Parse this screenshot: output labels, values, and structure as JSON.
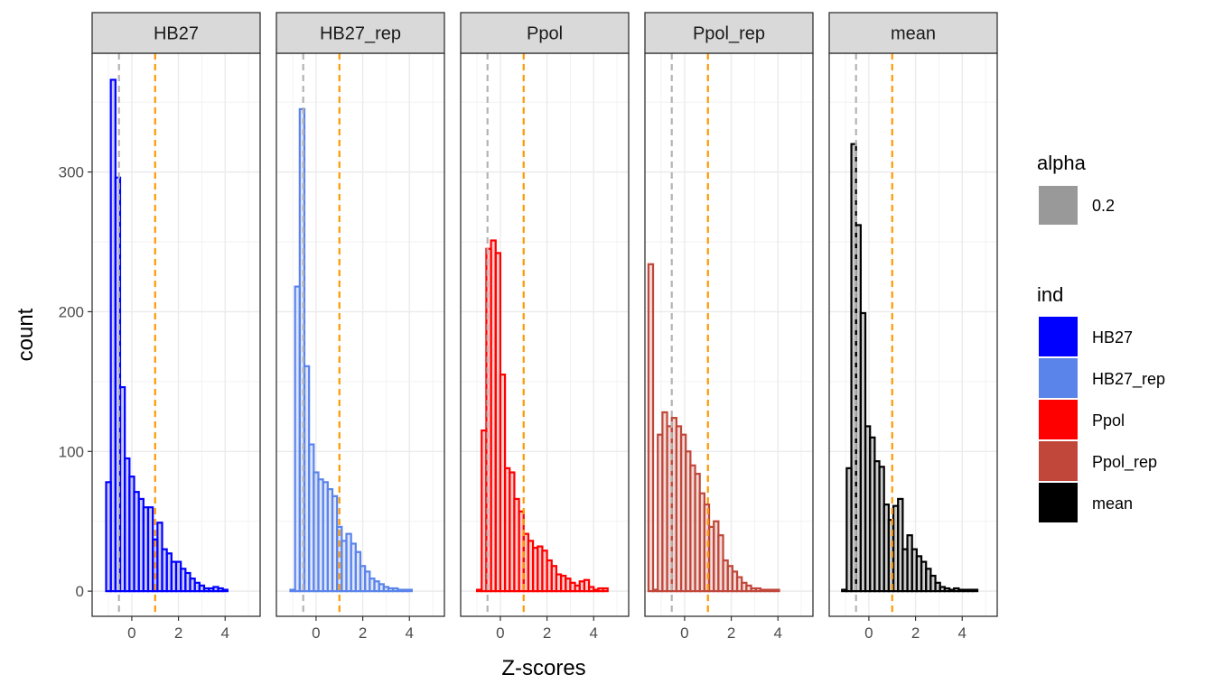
{
  "chart_data": {
    "type": "bar",
    "subtype": "faceted histogram",
    "xlabel": "Z-scores",
    "ylabel": "count",
    "xlim": [
      -1.7,
      5.5
    ],
    "ylim": [
      -18,
      385
    ],
    "x_ticks": [
      0,
      2,
      4
    ],
    "x_tick_labels": [
      "0",
      "2",
      "4"
    ],
    "y_ticks": [
      0,
      100,
      200,
      300
    ],
    "y_tick_labels": [
      "0",
      "100",
      "200",
      "300"
    ],
    "bin_width": 0.2,
    "grid": true,
    "vlines": [
      {
        "x": -0.55,
        "color": "#b3b3b3",
        "style": "dashed"
      },
      {
        "x": 1.0,
        "color": "#ff9900",
        "style": "dashed"
      }
    ],
    "legend_position": "right",
    "legends": [
      {
        "title": "alpha",
        "items": [
          {
            "label": "0.2",
            "color": "#999999"
          }
        ]
      },
      {
        "title": "ind",
        "items": [
          {
            "label": "HB27",
            "color": "#0000ff"
          },
          {
            "label": "HB27_rep",
            "color": "#5b84ea"
          },
          {
            "label": "Ppol",
            "color": "#ff0000"
          },
          {
            "label": "Ppol_rep",
            "color": "#c0473a"
          },
          {
            "label": "mean",
            "color": "#000000"
          }
        ]
      }
    ],
    "panels": [
      {
        "name": "HB27",
        "color": "#0000ff",
        "x_start": -1.1,
        "counts": [
          78,
          366,
          296,
          146,
          95,
          82,
          71,
          66,
          60,
          60,
          37,
          49,
          30,
          27,
          21,
          21,
          16,
          13,
          9,
          6,
          4,
          2,
          2,
          3,
          2,
          1
        ]
      },
      {
        "name": "HB27_rep",
        "color": "#5b84ea",
        "x_start": -1.1,
        "counts": [
          1,
          218,
          345,
          161,
          105,
          85,
          80,
          78,
          73,
          68,
          46,
          36,
          41,
          34,
          28,
          18,
          14,
          9,
          7,
          5,
          3,
          2,
          2,
          1,
          1,
          1
        ]
      },
      {
        "name": "Ppol",
        "color": "#ff0000",
        "x_start": -1.0,
        "counts": [
          1,
          115,
          245,
          251,
          242,
          155,
          88,
          85,
          66,
          57,
          41,
          36,
          31,
          32,
          29,
          22,
          18,
          12,
          11,
          9,
          6,
          4,
          7,
          8,
          3,
          1,
          2,
          2
        ]
      },
      {
        "name": "Ppol_rep",
        "color": "#c0473a",
        "x_start": -1.55,
        "counts": [
          234,
          1,
          112,
          128,
          118,
          124,
          118,
          112,
          100,
          90,
          84,
          70,
          62,
          46,
          50,
          40,
          22,
          18,
          14,
          10,
          6,
          4,
          2,
          2,
          1,
          1,
          1,
          1
        ]
      },
      {
        "name": "mean",
        "color": "#000000",
        "x_start": -1.15,
        "counts": [
          1,
          88,
          320,
          262,
          199,
          118,
          110,
          93,
          89,
          62,
          51,
          61,
          66,
          30,
          40,
          30,
          25,
          21,
          16,
          11,
          6,
          3,
          2,
          1,
          2,
          1,
          1,
          1,
          1
        ]
      }
    ]
  }
}
